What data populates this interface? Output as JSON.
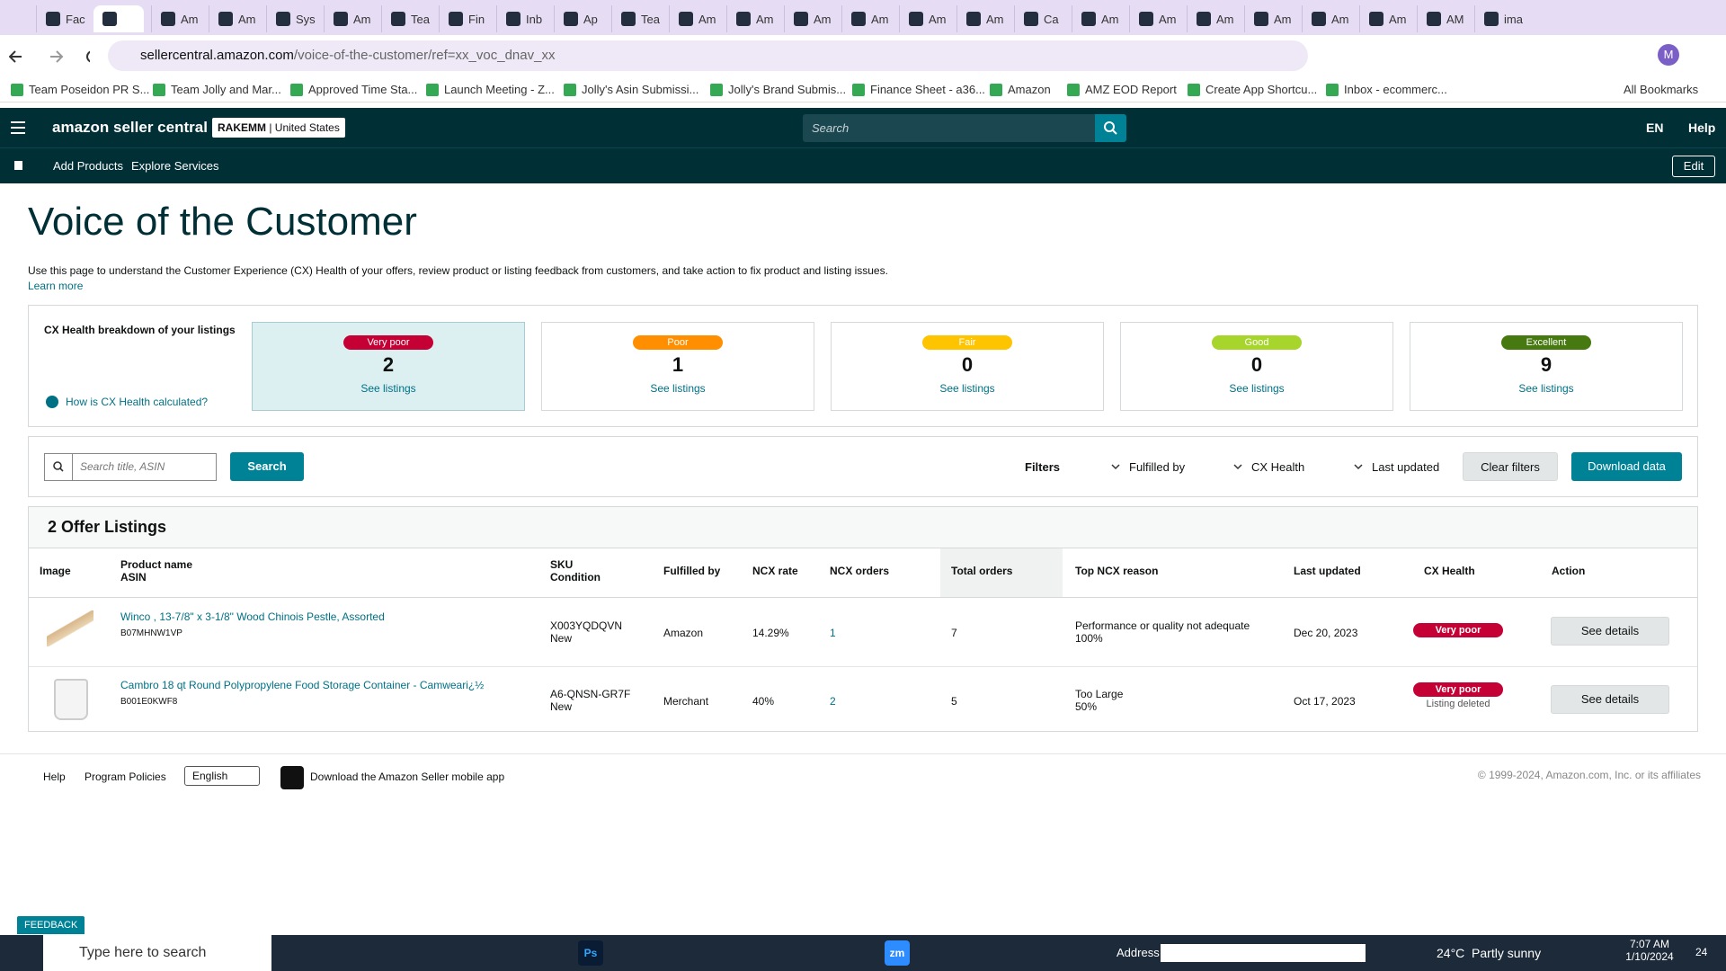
{
  "browser": {
    "tabs": [
      "Fac",
      "Am",
      "Am",
      "Sys",
      "Am",
      "Tea",
      "Fin",
      "Inb",
      "Ap",
      "Tea",
      "Am",
      "Am",
      "Am",
      "Am",
      "Am",
      "Am",
      "Ca",
      "Am",
      "Am",
      "Am",
      "Am",
      "Am",
      "Am",
      "AM",
      "ima"
    ],
    "url_host": "sellercentral.amazon.com",
    "url_path": "/voice-of-the-customer/ref=xx_voc_dnav_xx",
    "bookmarks": [
      "Team Poseidon PR S...",
      "Team Jolly and Mar...",
      "Approved Time Sta...",
      "Launch Meeting - Z...",
      "Jolly's Asin Submissi...",
      "Jolly's Brand Submis...",
      "Finance Sheet - a36...",
      "Amazon",
      "AMZ EOD Report",
      "Create App Shortcu...",
      "Inbox - ecommerc..."
    ],
    "all_bookmarks": "All Bookmarks",
    "profile_initial": "M"
  },
  "header": {
    "logo": "amazon seller central",
    "account": "RAKEMM",
    "marketplace": "| United States",
    "search_placeholder": "Search",
    "language": "EN",
    "help": "Help",
    "nav": [
      "Add Products",
      "Explore Services"
    ],
    "edit": "Edit"
  },
  "page": {
    "title": "Voice of the Customer",
    "description": "Use this page to understand the Customer Experience (CX) Health of your offers, review product or listing feedback from customers, and take action to fix product and listing issues.",
    "learn_more": "Learn more"
  },
  "cx_health": {
    "label": "CX Health breakdown of your listings",
    "help_link": "How is CX Health calculated?",
    "buckets": [
      {
        "label": "Very poor",
        "count": 2,
        "link": "See listings",
        "color": "#c40034"
      },
      {
        "label": "Poor",
        "count": 1,
        "link": "See listings",
        "color": "#ff8f00"
      },
      {
        "label": "Fair",
        "count": 0,
        "link": "See listings",
        "color": "#ffc400"
      },
      {
        "label": "Good",
        "count": 0,
        "link": "See listings",
        "color": "#a7d52c"
      },
      {
        "label": "Excellent",
        "count": 9,
        "link": "See listings",
        "color": "#467a10"
      }
    ]
  },
  "filters": {
    "search_placeholder": "Search title, ASIN",
    "search_button": "Search",
    "label": "Filters",
    "dropdowns": [
      "Fulfilled by",
      "CX Health",
      "Last updated"
    ],
    "clear": "Clear filters",
    "download": "Download data"
  },
  "table": {
    "heading": "2 Offer Listings",
    "columns": [
      [
        "Image"
      ],
      [
        "Product name",
        "ASIN"
      ],
      [
        "SKU",
        "Condition"
      ],
      [
        "Fulfilled by"
      ],
      [
        "NCX rate"
      ],
      [
        "NCX orders"
      ],
      [
        "Total orders"
      ],
      [
        "Top NCX reason"
      ],
      [
        "Last updated"
      ],
      [
        "CX Health"
      ],
      [
        "Action"
      ]
    ],
    "rows": [
      {
        "name": "Winco , 13-7/8\" x 3-1/8\" Wood Chinois Pestle, Assorted",
        "asin": "B07MHNW1VP",
        "sku": "X003YQDQVN",
        "condition": "New",
        "fulfilled_by": "Amazon",
        "ncx_rate": "14.29%",
        "ncx_orders": 1,
        "total_orders": 7,
        "reason": "Performance or quality not adequate",
        "reason_share": "100%",
        "last_updated": "Dec 20, 2023",
        "cx_health": "Very poor",
        "action": "See details"
      },
      {
        "name": "Cambro 18 qt Round Polypropylene Food Storage Container - Camweari¿½",
        "asin": "B001E0KWF8",
        "sku": "A6-QNSN-GR7F",
        "condition": "New",
        "fulfilled_by": "Merchant",
        "ncx_rate": "40%",
        "ncx_orders": 2,
        "total_orders": 5,
        "reason": "Too Large",
        "reason_share": "50%",
        "last_updated": "Oct 17, 2023",
        "cx_health": "Very poor",
        "note": "Listing deleted",
        "action": "See details"
      }
    ]
  },
  "footer": {
    "links": [
      "Help",
      "Program Policies"
    ],
    "language": "English",
    "app": "Download the Amazon Seller mobile app",
    "copyright": "© 1999-2024, Amazon.com, Inc. or its affiliates"
  },
  "feedback": "FEEDBACK",
  "taskbar": {
    "search": "Type here to search",
    "photoshop": "Ps",
    "zoom": "zm",
    "address": "Address",
    "weather": "24°C  Partly sunny",
    "time": "7:07 AM",
    "date": "1/10/2024",
    "notifications": "24"
  }
}
